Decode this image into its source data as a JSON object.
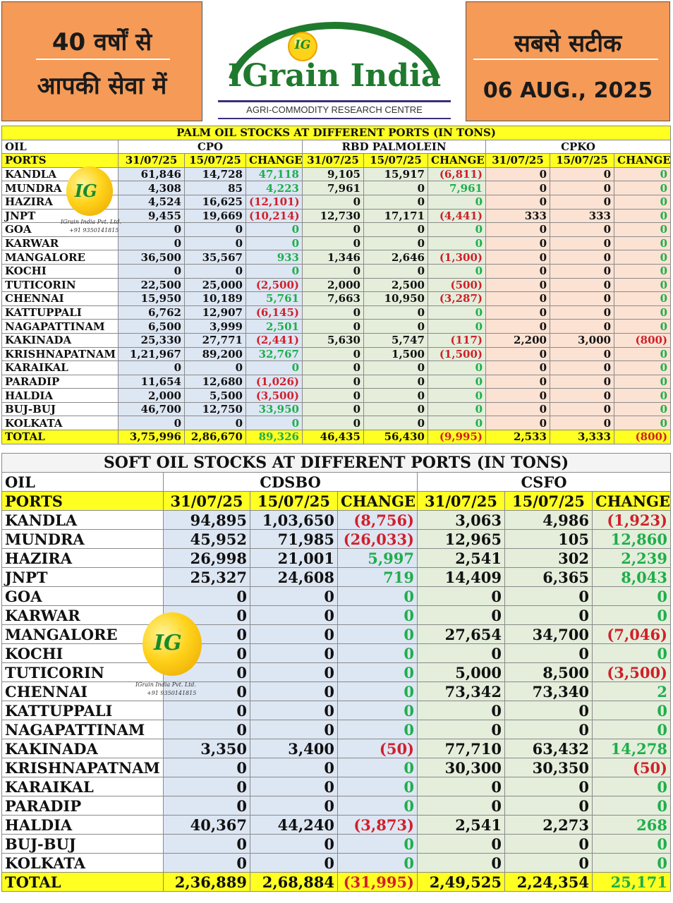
{
  "header": {
    "left_line1": "40 वर्षों से",
    "left_line2": "आपकी सेवा में",
    "brand": "IGrain India",
    "brand_sub": "AGRI-COMMODITY RESEARCH CENTRE",
    "logo_mark": "IG",
    "right_line1": "सबसे सटीक",
    "date": "06 AUG., 2025"
  },
  "watermark": {
    "mark": "IG",
    "company": "IGrain India Pvt. Ltd.",
    "phone": "+91 9350141815"
  },
  "palm": {
    "title": "PALM OIL STOCKS AT DIFFERENT PORTS (IN TONS)",
    "oil_label": "OIL",
    "groups": [
      "CPO",
      "RBD PALMOLEIN",
      "CPKO"
    ],
    "ports_label": "PORTS",
    "cols": [
      "31/07/25",
      "15/07/25",
      "CHANGE"
    ],
    "rows": [
      [
        "KANDLA",
        "61,846",
        "14,728",
        "47,118",
        "9,105",
        "15,917",
        "(6,811)",
        "0",
        "0",
        "0"
      ],
      [
        "MUNDRA",
        "4,308",
        "85",
        "4,223",
        "7,961",
        "0",
        "7,961",
        "0",
        "0",
        "0"
      ],
      [
        "HAZIRA",
        "4,524",
        "16,625",
        "(12,101)",
        "0",
        "0",
        "0",
        "0",
        "0",
        "0"
      ],
      [
        "JNPT",
        "9,455",
        "19,669",
        "(10,214)",
        "12,730",
        "17,171",
        "(4,441)",
        "333",
        "333",
        "0"
      ],
      [
        "GOA",
        "0",
        "0",
        "0",
        "0",
        "0",
        "0",
        "0",
        "0",
        "0"
      ],
      [
        "KARWAR",
        "0",
        "0",
        "0",
        "0",
        "0",
        "0",
        "0",
        "0",
        "0"
      ],
      [
        "MANGALORE",
        "36,500",
        "35,567",
        "933",
        "1,346",
        "2,646",
        "(1,300)",
        "0",
        "0",
        "0"
      ],
      [
        "KOCHI",
        "0",
        "0",
        "0",
        "0",
        "0",
        "0",
        "0",
        "0",
        "0"
      ],
      [
        "TUTICORIN",
        "22,500",
        "25,000",
        "(2,500)",
        "2,000",
        "2,500",
        "(500)",
        "0",
        "0",
        "0"
      ],
      [
        "CHENNAI",
        "15,950",
        "10,189",
        "5,761",
        "7,663",
        "10,950",
        "(3,287)",
        "0",
        "0",
        "0"
      ],
      [
        "KATTUPPALI",
        "6,762",
        "12,907",
        "(6,145)",
        "0",
        "0",
        "0",
        "0",
        "0",
        "0"
      ],
      [
        "NAGAPATTINAM",
        "6,500",
        "3,999",
        "2,501",
        "0",
        "0",
        "0",
        "0",
        "0",
        "0"
      ],
      [
        "KAKINADA",
        "25,330",
        "27,771",
        "(2,441)",
        "5,630",
        "5,747",
        "(117)",
        "2,200",
        "3,000",
        "(800)"
      ],
      [
        "KRISHNAPATNAM",
        "1,21,967",
        "89,200",
        "32,767",
        "0",
        "1,500",
        "(1,500)",
        "0",
        "0",
        "0"
      ],
      [
        "KARAIKAL",
        "0",
        "0",
        "0",
        "0",
        "0",
        "0",
        "0",
        "0",
        "0"
      ],
      [
        "PARADIP",
        "11,654",
        "12,680",
        "(1,026)",
        "0",
        "0",
        "0",
        "0",
        "0",
        "0"
      ],
      [
        "HALDIA",
        "2,000",
        "5,500",
        "(3,500)",
        "0",
        "0",
        "0",
        "0",
        "0",
        "0"
      ],
      [
        "BUJ-BUJ",
        "46,700",
        "12,750",
        "33,950",
        "0",
        "0",
        "0",
        "0",
        "0",
        "0"
      ],
      [
        "KOLKATA",
        "0",
        "0",
        "0",
        "0",
        "0",
        "0",
        "0",
        "0",
        "0"
      ]
    ],
    "total": [
      "TOTAL",
      "3,75,996",
      "2,86,670",
      "89,326",
      "46,435",
      "56,430",
      "(9,995)",
      "2,533",
      "3,333",
      "(800)"
    ]
  },
  "soft": {
    "title": "SOFT OIL STOCKS AT DIFFERENT PORTS (IN TONS)",
    "oil_label": "OIL",
    "groups": [
      "CDSBO",
      "CSFO"
    ],
    "ports_label": "PORTS",
    "cols": [
      "31/07/25",
      "15/07/25",
      "CHANGE"
    ],
    "rows": [
      [
        "KANDLA",
        "94,895",
        "1,03,650",
        "(8,756)",
        "3,063",
        "4,986",
        "(1,923)"
      ],
      [
        "MUNDRA",
        "45,952",
        "71,985",
        "(26,033)",
        "12,965",
        "105",
        "12,860"
      ],
      [
        "HAZIRA",
        "26,998",
        "21,001",
        "5,997",
        "2,541",
        "302",
        "2,239"
      ],
      [
        "JNPT",
        "25,327",
        "24,608",
        "719",
        "14,409",
        "6,365",
        "8,043"
      ],
      [
        "GOA",
        "0",
        "0",
        "0",
        "0",
        "0",
        "0"
      ],
      [
        "KARWAR",
        "0",
        "0",
        "0",
        "0",
        "0",
        "0"
      ],
      [
        "MANGALORE",
        "0",
        "0",
        "0",
        "27,654",
        "34,700",
        "(7,046)"
      ],
      [
        "KOCHI",
        "0",
        "0",
        "0",
        "0",
        "0",
        "0"
      ],
      [
        "TUTICORIN",
        "0",
        "0",
        "0",
        "5,000",
        "8,500",
        "(3,500)"
      ],
      [
        "CHENNAI",
        "0",
        "0",
        "0",
        "73,342",
        "73,340",
        "2"
      ],
      [
        "KATTUPPALI",
        "0",
        "0",
        "0",
        "0",
        "0",
        "0"
      ],
      [
        "NAGAPATTINAM",
        "0",
        "0",
        "0",
        "0",
        "0",
        "0"
      ],
      [
        "KAKINADA",
        "3,350",
        "3,400",
        "(50)",
        "77,710",
        "63,432",
        "14,278"
      ],
      [
        "KRISHNAPATNAM",
        "0",
        "0",
        "0",
        "30,300",
        "30,350",
        "(50)"
      ],
      [
        "KARAIKAL",
        "0",
        "0",
        "0",
        "0",
        "0",
        "0"
      ],
      [
        "PARADIP",
        "0",
        "0",
        "0",
        "0",
        "0",
        "0"
      ],
      [
        "HALDIA",
        "40,367",
        "44,240",
        "(3,873)",
        "2,541",
        "2,273",
        "268"
      ],
      [
        "BUJ-BUJ",
        "0",
        "0",
        "0",
        "0",
        "0",
        "0"
      ],
      [
        "KOLKATA",
        "0",
        "0",
        "0",
        "0",
        "0",
        "0"
      ]
    ],
    "total": [
      "TOTAL",
      "2,36,889",
      "2,68,884",
      "(31,995)",
      "2,49,525",
      "2,24,354",
      "25,171"
    ]
  },
  "colors": {
    "header_orange": "#f59a57",
    "brand_green": "#1f7a2e",
    "highlight_yellow": "#ffff22",
    "positive_green": "#1fae4b",
    "negative_red": "#d0202a"
  }
}
